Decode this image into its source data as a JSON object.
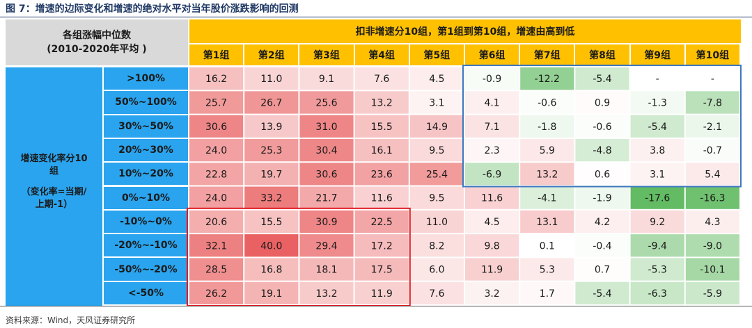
{
  "title": "图 7：增速的边际变化和增速的绝对水平对当年股价涨跌影响的回测",
  "source": "资料来源：Wind，天风证券研究所",
  "header": {
    "corner_line1": "各组涨幅中位数",
    "corner_line2": "(2010-2020年平均 )",
    "top_span": "扣非增速分10组，第1组到第10组，增速由高到低",
    "side_label_line1": "增速变化率分10",
    "side_label_line2": "组",
    "side_label_line3": "（变化率=当期/",
    "side_label_line4": "上期-1）"
  },
  "chart_data": {
    "type": "heatmap",
    "title": "增速的边际变化和增速的绝对水平对当年股价涨跌影响的回测",
    "columns": [
      "第1组",
      "第2组",
      "第3组",
      "第4组",
      "第5组",
      "第6组",
      "第7组",
      "第8组",
      "第9组",
      "第10组"
    ],
    "rows": [
      ">100%",
      "50%~100%",
      "30%~50%",
      "20%~30%",
      "10%~20%",
      "0%~10%",
      "-10%~0%",
      "-20%~-10%",
      "-50%~-20%",
      "<-50%"
    ],
    "values": [
      [
        16.2,
        11.0,
        9.1,
        7.6,
        4.5,
        -0.9,
        -12.2,
        -5.4,
        null,
        null
      ],
      [
        25.7,
        26.7,
        25.6,
        13.2,
        3.1,
        4.1,
        -0.6,
        0.9,
        -1.3,
        -7.8
      ],
      [
        30.6,
        13.9,
        31.0,
        15.5,
        14.9,
        7.1,
        -1.8,
        -0.6,
        -5.4,
        -2.1
      ],
      [
        24.0,
        25.3,
        30.4,
        16.1,
        9.5,
        2.3,
        5.9,
        -4.8,
        3.8,
        -0.7
      ],
      [
        22.8,
        19.7,
        30.6,
        23.6,
        25.4,
        -6.9,
        13.2,
        0.6,
        3.1,
        5.4
      ],
      [
        24.0,
        33.2,
        21.7,
        11.6,
        9.5,
        11.6,
        -4.1,
        -1.9,
        -17.6,
        -16.3
      ],
      [
        20.6,
        15.5,
        30.9,
        22.5,
        11.0,
        4.5,
        13.1,
        4.2,
        9.2,
        4.3
      ],
      [
        32.1,
        40.0,
        29.4,
        17.2,
        8.2,
        9.8,
        0.1,
        -0.4,
        -9.4,
        -9.0
      ],
      [
        28.5,
        16.8,
        18.1,
        17.5,
        6.0,
        11.9,
        5.3,
        0.7,
        -5.3,
        -10.1
      ],
      [
        26.2,
        19.1,
        13.2,
        11.9,
        7.6,
        3.2,
        1.7,
        -5.4,
        -6.3,
        -5.9
      ]
    ],
    "labels": [
      [
        "16.2",
        "11.0",
        "9.1",
        "7.6",
        "4.5",
        "-0.9",
        "-12.2",
        "-5.4",
        "-",
        "-"
      ],
      [
        "25.7",
        "26.7",
        "25.6",
        "13.2",
        "3.1",
        "4.1",
        "-0.6",
        "0.9",
        "-1.3",
        "-7.8"
      ],
      [
        "30.6",
        "13.9",
        "31.0",
        "15.5",
        "14.9",
        "7.1",
        "-1.8",
        "-0.6",
        "-5.4",
        "-2.1"
      ],
      [
        "24.0",
        "25.3",
        "30.4",
        "16.1",
        "9.5",
        "2.3",
        "5.9",
        "-4.8",
        "3.8",
        "-0.7"
      ],
      [
        "22.8",
        "19.7",
        "30.6",
        "23.6",
        "25.4",
        "-6.9",
        "13.2",
        "0.6",
        "3.1",
        "5.4"
      ],
      [
        "24.0",
        "33.2",
        "21.7",
        "11.6",
        "9.5",
        "11.6",
        "-4.1",
        "-1.9",
        "-17.6",
        "-16.3"
      ],
      [
        "20.6",
        "15.5",
        "30.9",
        "22.5",
        "11.0",
        "4.5",
        "13.1",
        "4.2",
        "9.2",
        "4.3"
      ],
      [
        "32.1",
        "40.0",
        "29.4",
        "17.2",
        "8.2",
        "9.8",
        "0.1",
        "-0.4",
        "-9.4",
        "-9.0"
      ],
      [
        "28.5",
        "16.8",
        "18.1",
        "17.5",
        "6.0",
        "11.9",
        "5.3",
        "0.7",
        "-5.3",
        "-10.1"
      ],
      [
        "26.2",
        "19.1",
        "13.2",
        "11.9",
        "7.6",
        "3.2",
        "1.7",
        "-5.4",
        "-6.3",
        "-5.9"
      ]
    ],
    "color_scale": {
      "positive_max": "#e8595a",
      "neutral": "#ffffff",
      "negative_max": "#5bb75b",
      "vmin": -17.6,
      "vmax": 40.0
    },
    "highlight_boxes": [
      {
        "rows": [
          0,
          4
        ],
        "cols": [
          5,
          9
        ],
        "color": "#3c78c0"
      },
      {
        "rows": [
          6,
          9
        ],
        "cols": [
          0,
          3
        ],
        "color": "#e21d24"
      }
    ]
  }
}
